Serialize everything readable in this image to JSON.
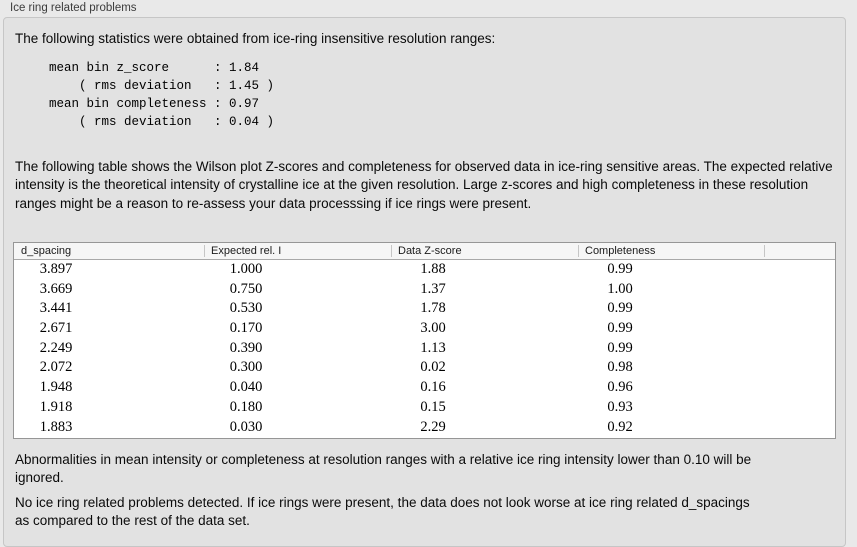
{
  "panel": {
    "title": "Ice ring related problems"
  },
  "intro": {
    "text": "The following statistics were obtained from ice-ring insensitive resolution ranges:"
  },
  "stats_block": {
    "lines": [
      "mean bin z_score      : 1.84",
      "    ( rms deviation   : 1.45 )",
      "mean bin completeness : 0.97",
      "    ( rms deviation   : 0.04 )"
    ]
  },
  "description": {
    "text": "The following table shows the Wilson plot Z-scores and completeness for observed data in ice-ring sensitive areas. The expected relative intensity is the theoretical intensity of crystalline ice at the given resolution. Large z-scores and high completeness in these resolution ranges might be a reason to re-assess your data processsing if ice rings were present."
  },
  "table": {
    "columns": [
      "d_spacing",
      "Expected rel. I",
      "Data Z-score",
      "Completeness"
    ],
    "rows": [
      [
        "3.897",
        "1.000",
        "1.88",
        "0.99"
      ],
      [
        "3.669",
        "0.750",
        "1.37",
        "1.00"
      ],
      [
        "3.441",
        "0.530",
        "1.78",
        "0.99"
      ],
      [
        "2.671",
        "0.170",
        "3.00",
        "0.99"
      ],
      [
        "2.249",
        "0.390",
        "1.13",
        "0.99"
      ],
      [
        "2.072",
        "0.300",
        "0.02",
        "0.98"
      ],
      [
        "1.948",
        "0.040",
        "0.16",
        "0.96"
      ],
      [
        "1.918",
        "0.180",
        "0.15",
        "0.93"
      ],
      [
        "1.883",
        "0.030",
        "2.29",
        "0.92"
      ]
    ]
  },
  "footnotes": [
    "Abnormalities in mean intensity or completeness at resolution ranges with a relative ice ring intensity lower than 0.10 will be ignored.",
    "No ice ring related problems detected. If ice rings were present, the data does not look worse at ice ring related d_spacings as compared to the rest of the data set."
  ],
  "colors": {
    "page_background": "#e9e9e9",
    "box_background": "#e2e2e2",
    "box_border": "#c6c6c6",
    "table_background": "#ffffff",
    "table_border": "#969696",
    "table_header_background": "#f6f6f6",
    "text": "#0a0a0a"
  }
}
